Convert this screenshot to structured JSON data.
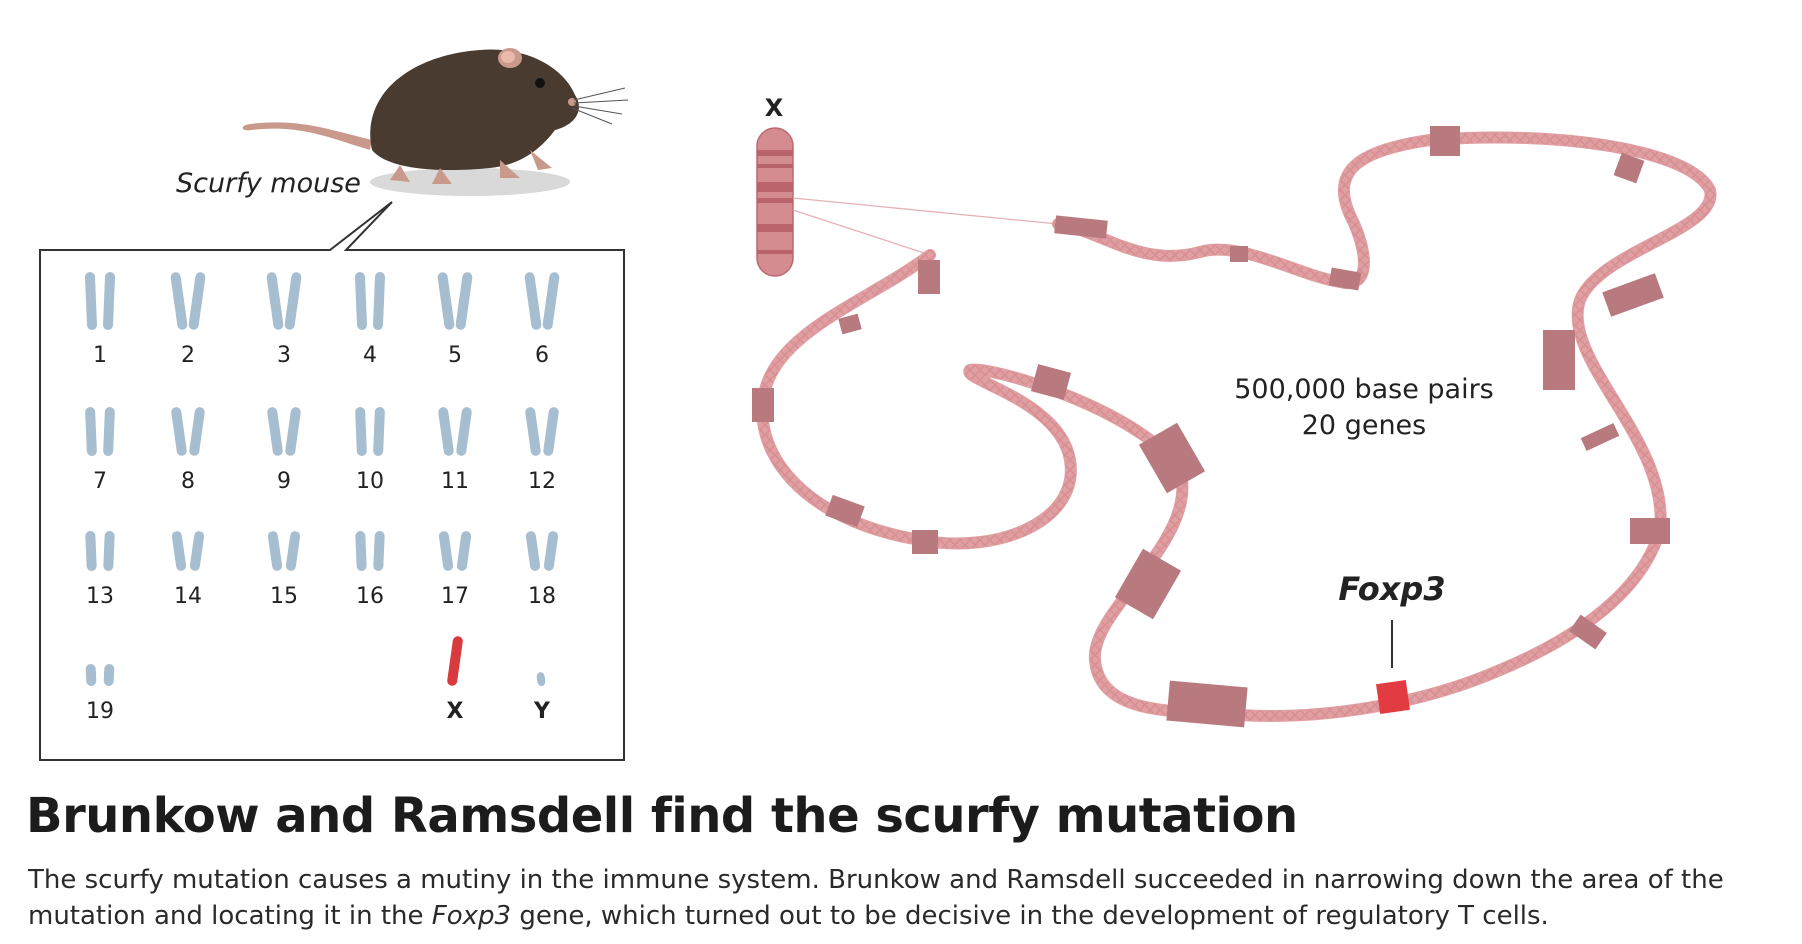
{
  "mouse_label": "Scurfy mouse",
  "karyotype": {
    "labels": [
      "1",
      "2",
      "3",
      "4",
      "5",
      "6",
      "7",
      "8",
      "9",
      "10",
      "11",
      "12",
      "13",
      "14",
      "15",
      "16",
      "17",
      "18",
      "19",
      "X",
      "Y"
    ]
  },
  "chromosome_x_label": "X",
  "stats": {
    "line1": "500,000 base pairs",
    "line2": "20 genes"
  },
  "gene_label": "Foxp3",
  "colors": {
    "chromosome": "#a7bdd0",
    "x_chromosome": "#d93a3e",
    "gene_box": "#b87a7e",
    "foxp3": "#e23b42",
    "dna": "#e0a6a6"
  },
  "title": "Brunkow and Ramsdell find the scurfy mutation",
  "description": {
    "part1": "The scurfy mutation causes a mutiny in the immune system. Brunkow and Ramsdell succeeded in narrowing down the area of the mutation and locating it in the ",
    "gene": "Foxp3",
    "part2": " gene, which turned out to be decisive in the development of regulatory T cells."
  }
}
